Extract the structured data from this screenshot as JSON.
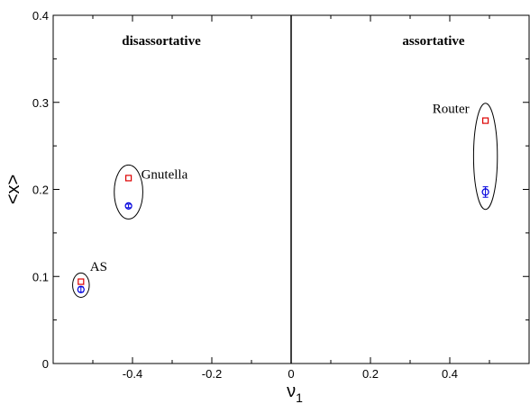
{
  "chart_data": {
    "type": "scatter",
    "title": "",
    "xlabel": "ν1",
    "ylabel": "<x>",
    "xlim": [
      -0.6,
      0.6
    ],
    "ylim": [
      0,
      0.4
    ],
    "x_ticks": [
      -0.4,
      -0.2,
      0,
      0.2,
      0.4
    ],
    "x_tick_labels": [
      "-0.4",
      "-0.2",
      "0",
      "0.2",
      "0.4"
    ],
    "y_ticks": [
      0,
      0.1,
      0.2,
      0.3,
      0.4
    ],
    "y_tick_labels": [
      "0",
      "0.1",
      "0.2",
      "0.3",
      "0.4"
    ],
    "divider_x": 0,
    "region_labels": [
      {
        "text": "disassortative"
      },
      {
        "text": "assortative"
      }
    ],
    "series": [
      {
        "color": "#dd0000",
        "marker": "square",
        "points": [
          {
            "x": -0.53,
            "y": 0.094
          },
          {
            "x": -0.41,
            "y": 0.213
          },
          {
            "x": 0.49,
            "y": 0.279
          }
        ]
      },
      {
        "color": "#0000dd",
        "marker": "circle",
        "points": [
          {
            "x": -0.53,
            "y": 0.085,
            "err": 0.003
          },
          {
            "x": -0.41,
            "y": 0.181,
            "err": 0.002
          },
          {
            "x": 0.49,
            "y": 0.197,
            "err": 0.006
          }
        ]
      }
    ],
    "groups": [
      {
        "label": "AS",
        "x_center": -0.53,
        "y_center": 0.09,
        "x_radius": 0.021,
        "y_radius": 0.014
      },
      {
        "label": "Gnutella",
        "x_center": -0.41,
        "y_center": 0.197,
        "x_radius": 0.036,
        "y_radius": 0.031
      },
      {
        "label": "Router",
        "x_center": 0.49,
        "y_center": 0.238,
        "x_radius": 0.03,
        "y_radius": 0.061
      }
    ]
  }
}
